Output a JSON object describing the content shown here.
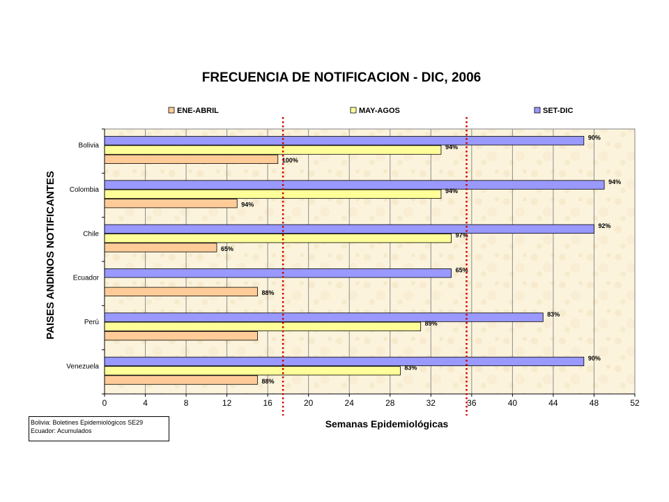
{
  "chart_data": {
    "type": "bar",
    "orientation": "horizontal",
    "title": "FRECUENCIA DE NOTIFICACION - DIC, 2006",
    "xlabel": "Semanas Epidemiológicas",
    "ylabel": "PAISES ANDINOS NOTIFICANTES",
    "xlim": [
      0,
      52
    ],
    "xticks": [
      0,
      4,
      8,
      12,
      16,
      20,
      24,
      28,
      32,
      36,
      40,
      44,
      48,
      52
    ],
    "categories": [
      "Bolivia",
      "Colombia",
      "Chile",
      "Ecuador",
      "Perú",
      "Venezuela"
    ],
    "series": [
      {
        "name": "SET-DIC",
        "color": "#9999ff",
        "values": [
          47,
          49,
          48,
          34,
          43,
          47
        ],
        "labels": [
          "90%",
          "94%",
          "92%",
          "65%",
          "83%",
          "90%"
        ]
      },
      {
        "name": "MAY-AGOS",
        "color": "#ffff99",
        "values": [
          33,
          33,
          34,
          null,
          31,
          29
        ],
        "labels": [
          "94%",
          "94%",
          "97%",
          "",
          "89%",
          "83%"
        ]
      },
      {
        "name": "ENE-ABRIL",
        "color": "#ffcc99",
        "values": [
          17,
          13,
          11,
          15,
          15,
          15
        ],
        "labels": [
          "100%",
          "94%",
          "65%",
          "88%",
          "",
          "88%"
        ]
      }
    ],
    "reference_lines": [
      17.5,
      35.5
    ],
    "reference_line_color": "#cc0000",
    "legend_order": [
      "ENE-ABRIL",
      "MAY-AGOS",
      "SET-DIC"
    ],
    "legend_position": "top",
    "grid": true,
    "plot_background": "#fbf3dc"
  },
  "notes": [
    "Bolivia: Boletines Epidemiológicos SE29",
    "Ecuador: Acumulados"
  ]
}
